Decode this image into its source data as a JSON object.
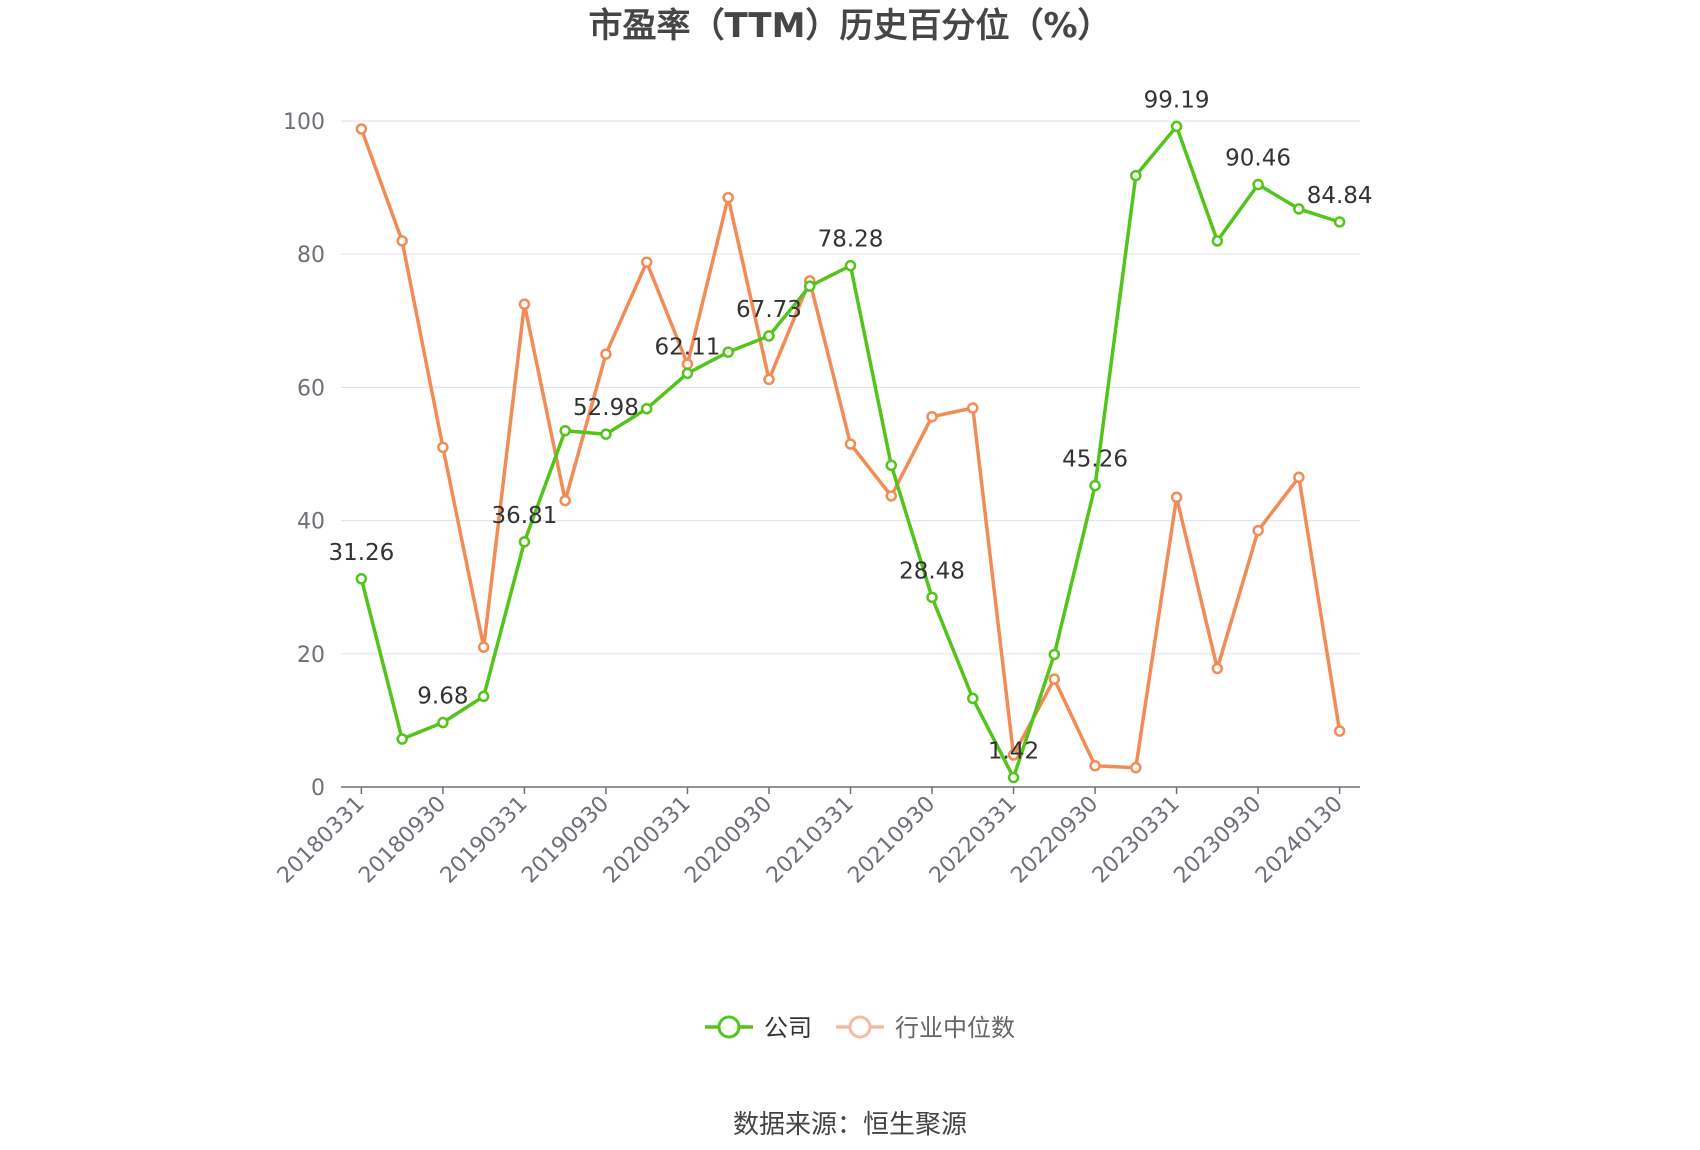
{
  "chart_data": {
    "type": "line",
    "title": "市盈率（TTM）历史百分位（%）",
    "ylim": [
      0,
      100
    ],
    "yticks": [
      0,
      20,
      40,
      60,
      80,
      100
    ],
    "grid": true,
    "legend_position": "bottom",
    "x": [
      "20180331",
      "20180630",
      "20180930",
      "20181231",
      "20190331",
      "20190630",
      "20190930",
      "20191231",
      "20200331",
      "20200630",
      "20200930",
      "20201231",
      "20210331",
      "20210630",
      "20210930",
      "20211231",
      "20220331",
      "20220630",
      "20220930",
      "20221231",
      "20230331",
      "20230630",
      "20230930",
      "20231231",
      "20240130"
    ],
    "x_tick_labels": [
      "20180331",
      "20180930",
      "20190331",
      "20190930",
      "20200331",
      "20200930",
      "20210331",
      "20210930",
      "20220331",
      "20220930",
      "20230331",
      "20230930",
      "20240130"
    ],
    "series": [
      {
        "name": "公司",
        "color": "#52c41a",
        "values": [
          31.26,
          7.2,
          9.68,
          13.6,
          36.81,
          53.5,
          52.98,
          56.8,
          62.11,
          65.3,
          67.73,
          75.2,
          78.28,
          48.3,
          28.48,
          13.3,
          1.42,
          19.9,
          45.26,
          91.8,
          99.19,
          82.0,
          90.46,
          86.8,
          84.84
        ],
        "labels": {
          "0": "31.26",
          "2": "9.68",
          "4": "36.81",
          "6": "52.98",
          "8": "62.11",
          "10": "67.73",
          "12": "78.28",
          "14": "28.48",
          "16": "1.42",
          "18": "45.26",
          "20": "99.19",
          "22": "90.46",
          "24": "84.84"
        }
      },
      {
        "name": "行业中位数",
        "color": "#f28c56",
        "values": [
          98.8,
          82.0,
          51.0,
          21.0,
          72.5,
          43.0,
          65.0,
          78.8,
          63.5,
          88.5,
          61.2,
          76.0,
          51.5,
          43.7,
          55.6,
          56.9,
          4.8,
          16.2,
          3.2,
          2.9,
          43.5,
          17.8,
          38.5,
          46.5,
          8.4
        ]
      }
    ]
  },
  "footer": {
    "source": "数据来源：恒生聚源"
  }
}
